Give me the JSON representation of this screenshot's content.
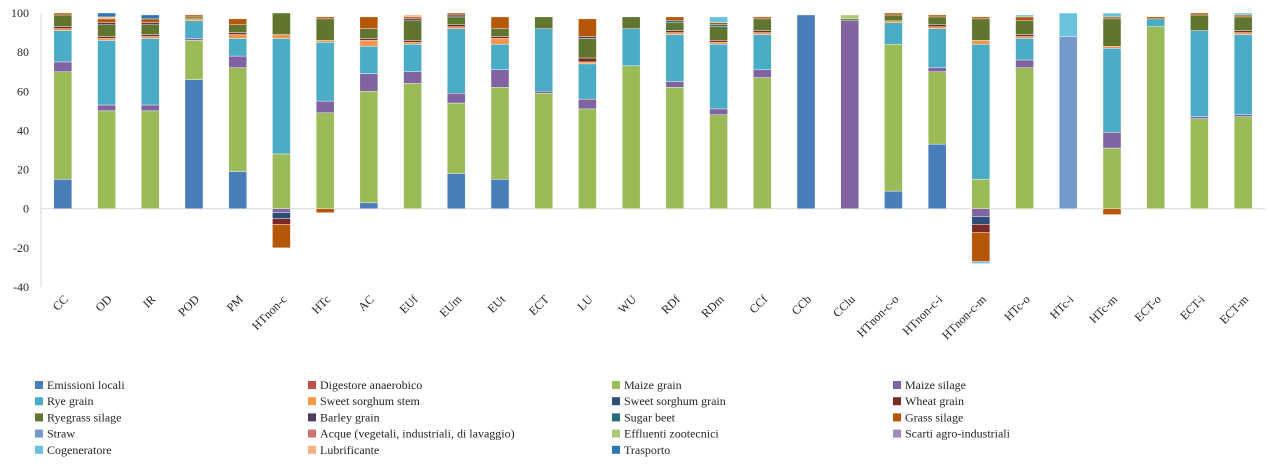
{
  "chart_data": {
    "type": "bar",
    "stacked": true,
    "title": "",
    "xlabel": "",
    "ylabel": "",
    "ylim": [
      -40,
      100
    ],
    "yticks": [
      -40,
      -20,
      0,
      20,
      40,
      60,
      80,
      100
    ],
    "grid": false,
    "legend_position": "bottom",
    "categories": [
      "CC",
      "OD",
      "IR",
      "POD",
      "PM",
      "HTnon-c",
      "HTc",
      "AC",
      "EUf",
      "EUm",
      "EUt",
      "ECT",
      "LU",
      "WU",
      "RDf",
      "RDm",
      "CCf",
      "CCb",
      "CClu",
      "HTnon-c-o",
      "HTnon-c-i",
      "HTnon-c-m",
      "HTc-o",
      "HTc-i",
      "HTc-m",
      "ECT-o",
      "ECT-i",
      "ECT-m"
    ],
    "series": [
      {
        "name": "Emissioni locali",
        "color": "#4a7ebb",
        "values": [
          15,
          0,
          0,
          66,
          19,
          0,
          0,
          3,
          0,
          18,
          15,
          0,
          0,
          0,
          0,
          0,
          0,
          99,
          0,
          9,
          33,
          0,
          0,
          0,
          0,
          0,
          0,
          0
        ]
      },
      {
        "name": "Digestore anaerobico",
        "color": "#c0504d",
        "values": [
          0,
          0,
          0,
          0,
          0,
          0,
          0,
          0,
          0,
          0,
          0,
          0,
          0,
          0,
          0,
          0,
          0,
          0,
          0,
          0,
          0,
          0,
          0,
          0,
          0,
          0,
          0,
          0
        ]
      },
      {
        "name": "Maize grain",
        "color": "#9bbb59",
        "values": [
          55,
          50,
          50,
          20,
          53,
          28,
          49,
          57,
          64,
          36,
          47,
          59,
          51,
          73,
          62,
          48,
          67,
          0,
          0,
          75,
          37,
          15,
          72,
          0,
          31,
          93,
          46,
          47
        ]
      },
      {
        "name": "Maize silage",
        "color": "#8064a2",
        "values": [
          5,
          3,
          3,
          1,
          6,
          0,
          6,
          9,
          6,
          5,
          9,
          1,
          5,
          0,
          3,
          3,
          4,
          0,
          96,
          0,
          2,
          0,
          4,
          0,
          8,
          0,
          1,
          1
        ]
      },
      {
        "name": "Rye grain",
        "color": "#4bacc6",
        "values": [
          16,
          33,
          34,
          9,
          9,
          59,
          30,
          14,
          14,
          33,
          13,
          32,
          18,
          19,
          24,
          33,
          18,
          0,
          0,
          11,
          20,
          69,
          11,
          0,
          43,
          4,
          44,
          41
        ]
      },
      {
        "name": "Sweet sorghum stem",
        "color": "#f79646",
        "values": [
          1,
          1,
          1,
          1,
          2,
          2,
          1,
          3,
          1,
          1,
          3,
          0,
          1,
          0,
          1,
          1,
          1,
          0,
          0,
          1,
          1,
          2,
          1,
          0,
          1,
          0,
          0,
          1
        ]
      },
      {
        "name": "Sweet sorghum grain",
        "color": "#2c4d75",
        "values": [
          0,
          0,
          0,
          0,
          0,
          0,
          0,
          0,
          0,
          0,
          0,
          0,
          0,
          0,
          0,
          0,
          0,
          0,
          0,
          0,
          0,
          0,
          0,
          0,
          0,
          0,
          0,
          0
        ]
      },
      {
        "name": "Wheat grain",
        "color": "#772c2a",
        "values": [
          1,
          1,
          1,
          0,
          1,
          0,
          0,
          1,
          1,
          1,
          1,
          0,
          2,
          0,
          1,
          1,
          1,
          0,
          0,
          0,
          1,
          0,
          1,
          0,
          0,
          0,
          0,
          1
        ]
      },
      {
        "name": "Ryegrass silage",
        "color": "#5f7530",
        "values": [
          6,
          6,
          5,
          1,
          4,
          11,
          11,
          5,
          10,
          4,
          4,
          6,
          10,
          6,
          4,
          7,
          6,
          0,
          1,
          3,
          4,
          11,
          7,
          0,
          14,
          0,
          8,
          7
        ]
      },
      {
        "name": "Barley grain",
        "color": "#4d3b62",
        "values": [
          0,
          1,
          1,
          0,
          0,
          0,
          0,
          0,
          1,
          1,
          0,
          0,
          1,
          0,
          0,
          0,
          0,
          0,
          0,
          0,
          0,
          0,
          0,
          0,
          0,
          0,
          0,
          0
        ]
      },
      {
        "name": "Sugar beet",
        "color": "#276a7c",
        "values": [
          0,
          0,
          0,
          0,
          0,
          0,
          0,
          0,
          0,
          0,
          0,
          0,
          0,
          0,
          1,
          1,
          0,
          0,
          0,
          0,
          0,
          0,
          0,
          0,
          0,
          0,
          0,
          0
        ]
      },
      {
        "name": "Grass silage",
        "color": "#b65708",
        "values": [
          1,
          2,
          2,
          1,
          3,
          0,
          1,
          6,
          1,
          1,
          6,
          0,
          9,
          0,
          2,
          1,
          1,
          0,
          0,
          1,
          1,
          1,
          2,
          0,
          1,
          1,
          1,
          1
        ]
      },
      {
        "name": "Straw",
        "color": "#729aca",
        "values": [
          0,
          0,
          0,
          0,
          0,
          0,
          0,
          0,
          0,
          0,
          0,
          0,
          0,
          0,
          0,
          0,
          0,
          0,
          0,
          0,
          0,
          0,
          0,
          88,
          0,
          0,
          0,
          0
        ]
      },
      {
        "name": "Acque (vegetali, industriali, di lavaggio)",
        "color": "#cd7371",
        "values": [
          0,
          0,
          0,
          0,
          0,
          0,
          0,
          0,
          0,
          0,
          0,
          0,
          0,
          0,
          0,
          0,
          0,
          0,
          0,
          0,
          0,
          0,
          0,
          0,
          0,
          0,
          0,
          0
        ]
      },
      {
        "name": "Effluenti zootecnici",
        "color": "#afc97a",
        "values": [
          0,
          0,
          0,
          0,
          0,
          0,
          0,
          0,
          0,
          0,
          0,
          0,
          0,
          0,
          0,
          0,
          0,
          0,
          2,
          0,
          0,
          0,
          0,
          0,
          0,
          0,
          0,
          0
        ]
      },
      {
        "name": "Scarti agro-industriali",
        "color": "#a08cb8",
        "values": [
          0,
          0,
          0,
          0,
          0,
          0,
          0,
          0,
          0,
          0,
          0,
          0,
          0,
          0,
          0,
          0,
          0,
          0,
          0,
          0,
          0,
          0,
          0,
          0,
          0,
          0,
          0,
          0
        ]
      },
      {
        "name": "Cogeneratore",
        "color": "#6ac3da",
        "values": [
          0,
          0,
          0,
          0,
          0,
          0,
          0,
          0,
          0,
          0,
          0,
          0,
          0,
          0,
          0,
          3,
          0,
          0,
          0,
          0,
          0,
          0,
          1,
          12,
          2,
          0,
          0,
          1
        ]
      },
      {
        "name": "Lubrificante",
        "color": "#f9b07e",
        "values": [
          0,
          1,
          0,
          0,
          0,
          0,
          0,
          0,
          1,
          0,
          0,
          0,
          0,
          0,
          0,
          0,
          0,
          0,
          0,
          0,
          0,
          0,
          0,
          0,
          0,
          0,
          0,
          0
        ]
      },
      {
        "name": "Trasporto",
        "color": "#2e75b6",
        "values": [
          0,
          2,
          2,
          0,
          0,
          0,
          0,
          0,
          0,
          0,
          0,
          0,
          0,
          0,
          0,
          0,
          0,
          0,
          0,
          0,
          0,
          0,
          0,
          0,
          0,
          0,
          0,
          0
        ]
      }
    ],
    "negative_series": [
      {
        "name": "Maize silage",
        "color": "#8064a2",
        "values": [
          0,
          0,
          0,
          0,
          0,
          -2,
          0,
          0,
          0,
          0,
          0,
          0,
          0,
          0,
          0,
          0,
          0,
          0,
          0,
          0,
          0,
          -4,
          0,
          0,
          0,
          0,
          0,
          0
        ]
      },
      {
        "name": "Sweet sorghum grain",
        "color": "#2c4d75",
        "values": [
          0,
          0,
          0,
          0,
          0,
          -3,
          0,
          0,
          0,
          0,
          0,
          0,
          0,
          0,
          0,
          0,
          0,
          0,
          0,
          0,
          0,
          -4,
          0,
          0,
          0,
          0,
          0,
          0
        ]
      },
      {
        "name": "Wheat grain",
        "color": "#772c2a",
        "values": [
          0,
          0,
          0,
          0,
          0,
          -3,
          0,
          0,
          0,
          0,
          0,
          0,
          0,
          0,
          0,
          0,
          0,
          0,
          0,
          0,
          0,
          -4,
          0,
          0,
          0,
          0,
          0,
          0
        ]
      },
      {
        "name": "Grass silage",
        "color": "#b65708",
        "values": [
          0,
          0,
          0,
          0,
          0,
          -12,
          -2,
          0,
          0,
          0,
          0,
          0,
          0,
          0,
          0,
          0,
          0,
          0,
          0,
          0,
          0,
          -15,
          0,
          0,
          -3,
          0,
          0,
          0
        ]
      },
      {
        "name": "Cogeneratore",
        "color": "#6ac3da",
        "values": [
          0,
          0,
          0,
          0,
          0,
          0,
          0,
          0,
          0,
          0,
          0,
          0,
          0,
          0,
          0,
          0,
          0,
          0,
          0,
          0,
          0,
          -1,
          0,
          0,
          0,
          0,
          0,
          0
        ]
      }
    ]
  }
}
